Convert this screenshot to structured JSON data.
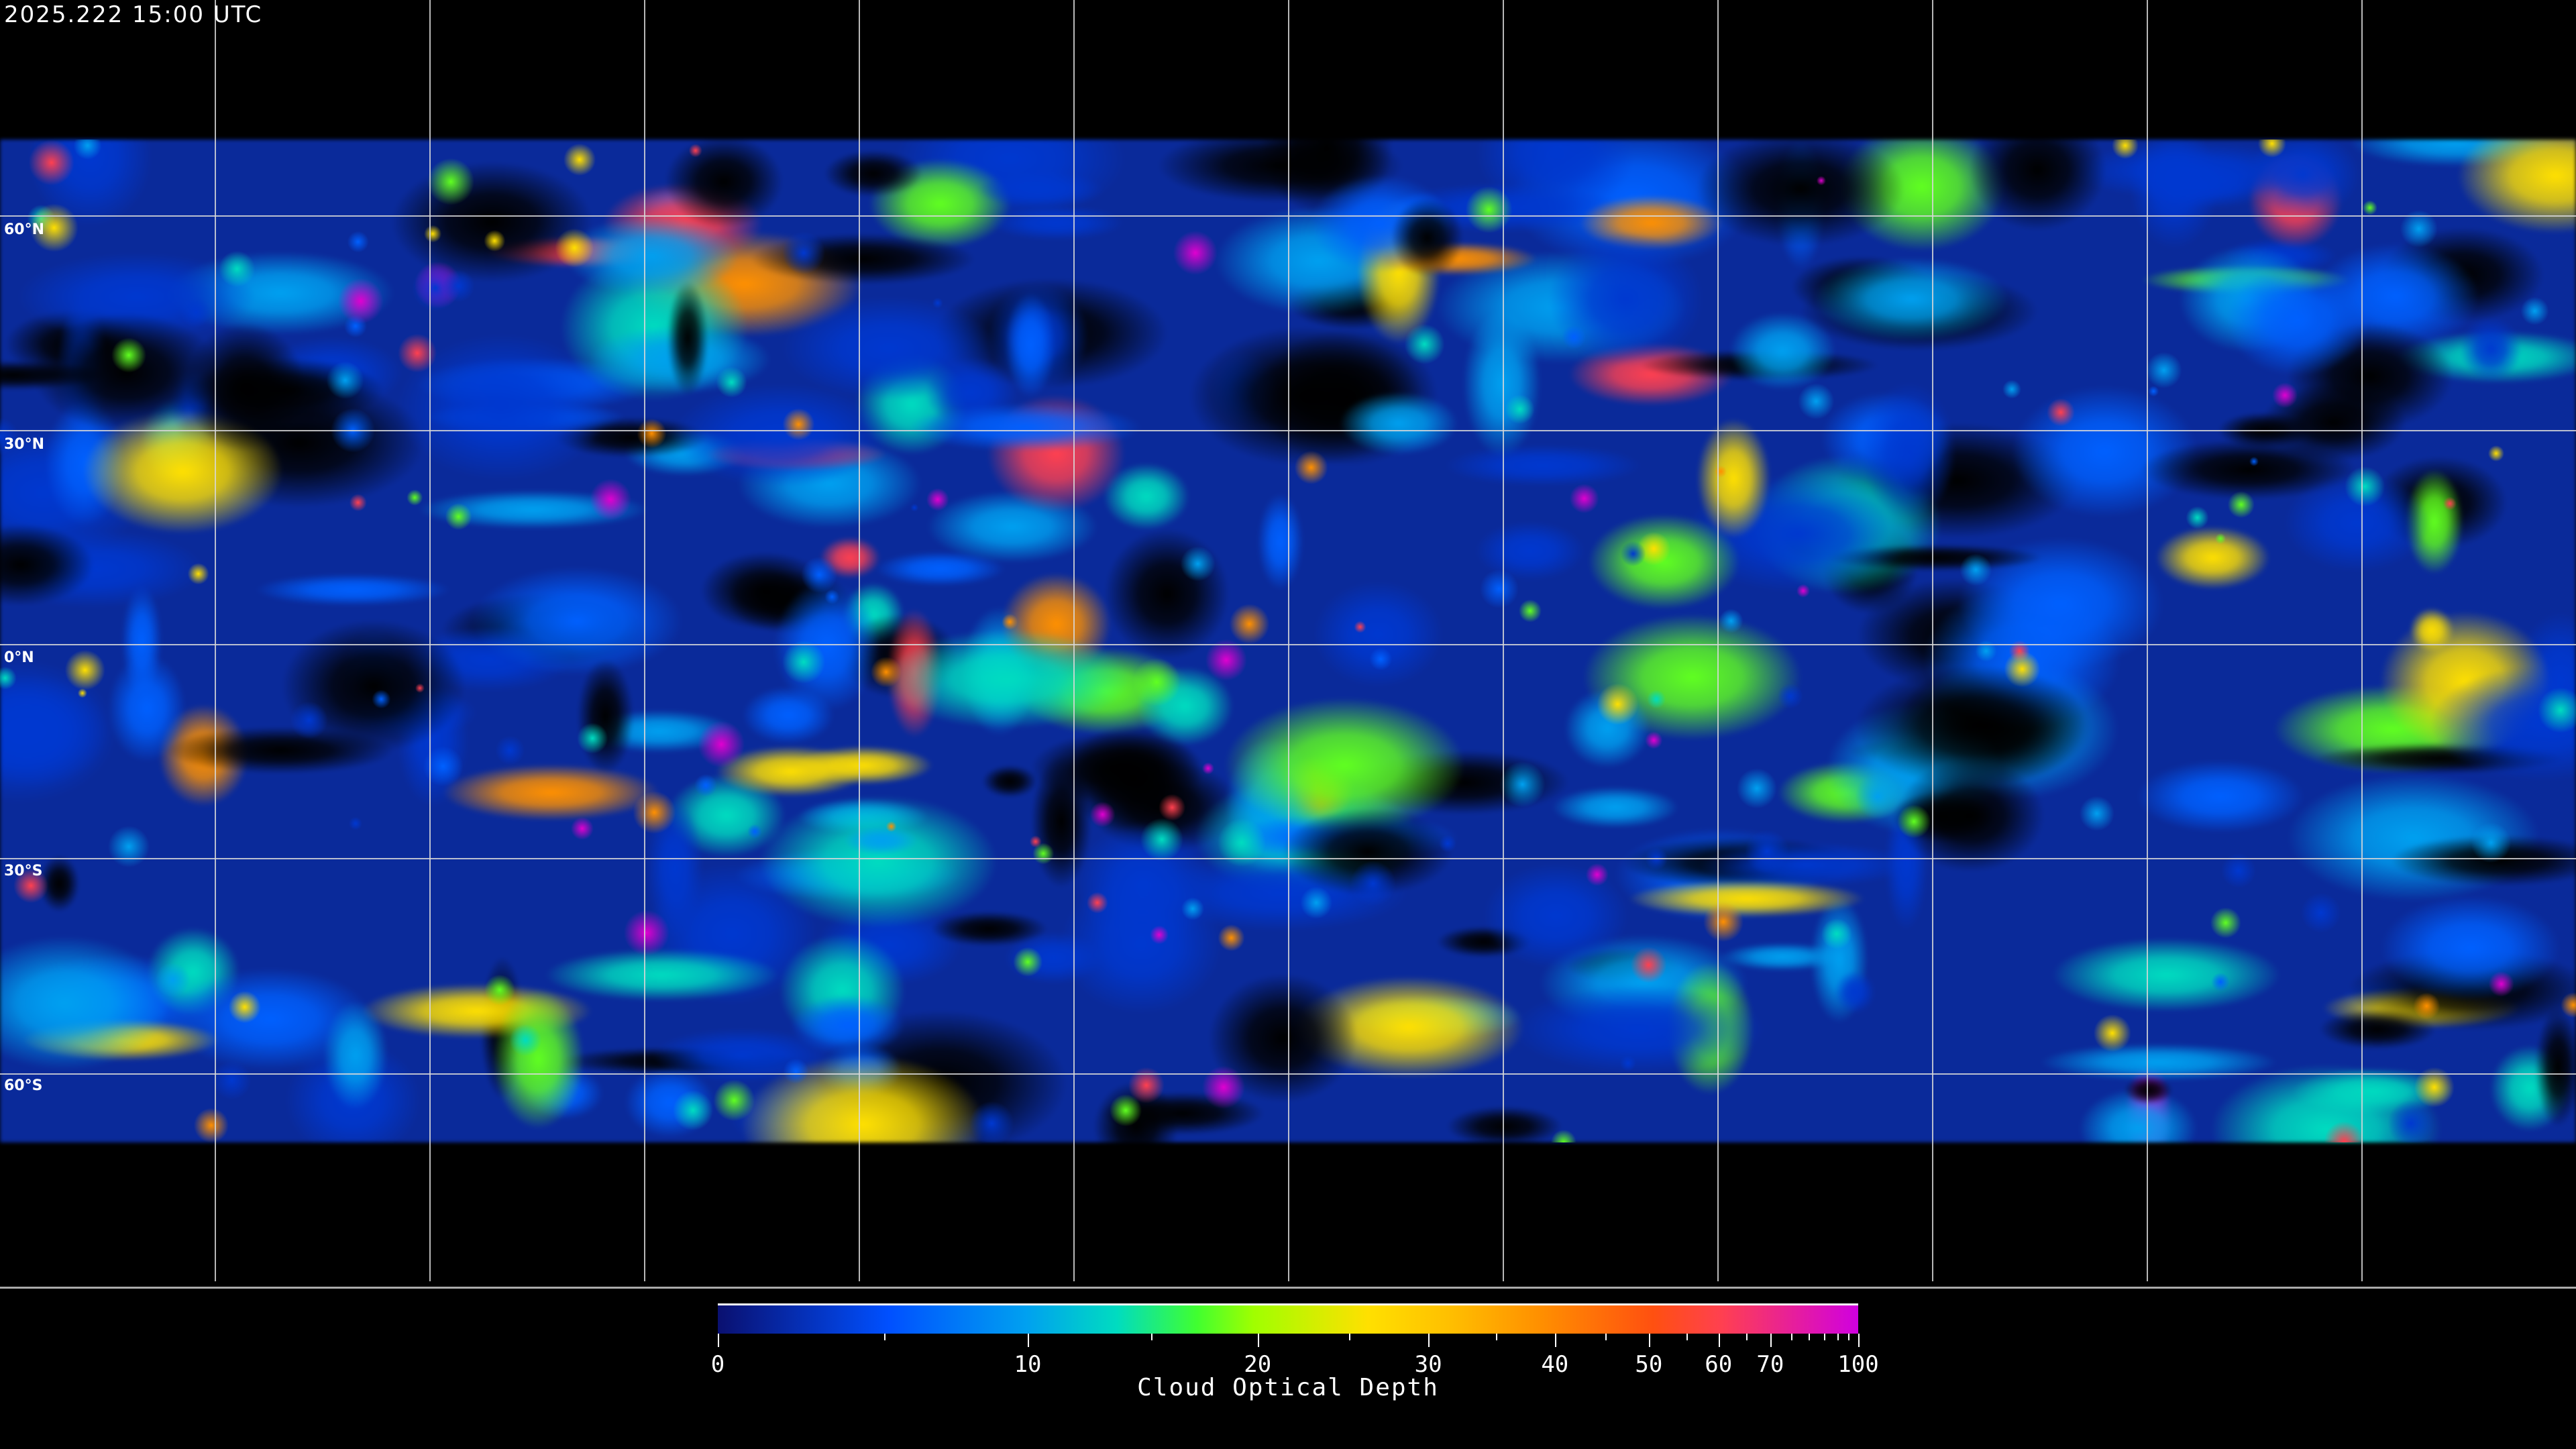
{
  "header": {
    "timestamp": "2025.222 15:00 UTC"
  },
  "map": {
    "projection": "equirectangular",
    "latitude_labels": [
      "60°N",
      "30°N",
      "0°N",
      "30°S",
      "60°S"
    ],
    "gridlines": true,
    "coastlines": true
  },
  "colorbar": {
    "label": "Cloud Optical Depth",
    "range": [
      0,
      100
    ],
    "tick_labels": [
      "0",
      "10",
      "20",
      "30",
      "40",
      "50",
      "60",
      "70",
      "100"
    ],
    "colors": [
      "#0a1070",
      "#0050ff",
      "#00a0f0",
      "#00dcc0",
      "#40ff30",
      "#a0ff00",
      "#ffe000",
      "#ffc000",
      "#ff9000",
      "#ff5010",
      "#ff4050",
      "#d000e0"
    ]
  }
}
